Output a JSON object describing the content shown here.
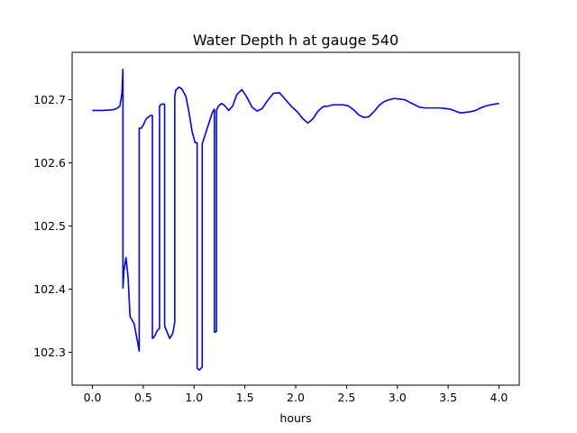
{
  "chart_data": {
    "type": "line",
    "title": "Water Depth h at gauge 540",
    "xlabel": "hours",
    "ylabel": "",
    "xlim": [
      -0.2,
      4.2
    ],
    "ylim": [
      102.248,
      102.775
    ],
    "xticks": [
      0.0,
      0.5,
      1.0,
      1.5,
      2.0,
      2.5,
      3.0,
      3.5,
      4.0
    ],
    "xtick_labels": [
      "0.0",
      "0.5",
      "1.0",
      "1.5",
      "2.0",
      "2.5",
      "3.0",
      "3.5",
      "4.0"
    ],
    "yticks": [
      102.3,
      102.4,
      102.5,
      102.6,
      102.7
    ],
    "ytick_labels": [
      "102.3",
      "102.4",
      "102.5",
      "102.6",
      "102.7"
    ],
    "grid": false,
    "series": [
      {
        "color": "#0000ff",
        "x": [
          0.0,
          0.1,
          0.2,
          0.24,
          0.27,
          0.29,
          0.3,
          0.3,
          0.31,
          0.33,
          0.35,
          0.37,
          0.41,
          0.44,
          0.46,
          0.46,
          0.48,
          0.5,
          0.53,
          0.57,
          0.59,
          0.59,
          0.61,
          0.64,
          0.66,
          0.66,
          0.68,
          0.71,
          0.71,
          0.74,
          0.76,
          0.79,
          0.81,
          0.81,
          0.82,
          0.85,
          0.88,
          0.92,
          0.95,
          0.98,
          1.01,
          1.03,
          1.03,
          1.05,
          1.07,
          1.08,
          1.08,
          1.11,
          1.15,
          1.18,
          1.2,
          1.2,
          1.22,
          1.22,
          1.24,
          1.27,
          1.3,
          1.34,
          1.38,
          1.42,
          1.47,
          1.52,
          1.57,
          1.62,
          1.67,
          1.72,
          1.78,
          1.84,
          1.9,
          1.96,
          2.02,
          2.07,
          2.12,
          2.17,
          2.22,
          2.27,
          2.32,
          2.37,
          2.42,
          2.47,
          2.52,
          2.57,
          2.62,
          2.67,
          2.72,
          2.77,
          2.82,
          2.87,
          2.92,
          2.97,
          3.02,
          3.07,
          3.12,
          3.17,
          3.22,
          3.27,
          3.32,
          3.37,
          3.42,
          3.47,
          3.52,
          3.57,
          3.62,
          3.67,
          3.72,
          3.77,
          3.82,
          3.87,
          3.92,
          4.0
        ],
        "y": [
          102.683,
          102.683,
          102.684,
          102.686,
          102.69,
          102.71,
          102.748,
          102.402,
          102.43,
          102.45,
          102.42,
          102.357,
          102.345,
          102.32,
          102.302,
          102.655,
          102.655,
          102.66,
          102.67,
          102.675,
          102.675,
          102.322,
          102.325,
          102.335,
          102.338,
          102.69,
          102.693,
          102.693,
          102.342,
          102.33,
          102.322,
          102.33,
          102.348,
          102.705,
          102.715,
          102.72,
          102.717,
          102.705,
          102.68,
          102.65,
          102.632,
          102.632,
          102.275,
          102.272,
          102.275,
          102.277,
          102.63,
          102.645,
          102.665,
          102.68,
          102.685,
          102.332,
          102.333,
          102.683,
          102.69,
          102.694,
          102.691,
          102.683,
          102.69,
          102.708,
          102.716,
          102.704,
          102.688,
          102.682,
          102.686,
          102.698,
          102.71,
          102.711,
          102.7,
          102.689,
          102.68,
          102.67,
          102.663,
          102.67,
          102.682,
          102.689,
          102.69,
          102.692,
          102.692,
          102.692,
          102.69,
          102.684,
          102.676,
          102.672,
          102.673,
          102.681,
          102.691,
          102.697,
          102.7,
          102.702,
          102.701,
          102.7,
          102.696,
          102.692,
          102.688,
          102.687,
          102.687,
          102.687,
          102.687,
          102.686,
          102.685,
          102.682,
          102.679,
          102.68,
          102.681,
          102.683,
          102.687,
          102.69,
          102.692,
          102.694
        ]
      }
    ]
  }
}
